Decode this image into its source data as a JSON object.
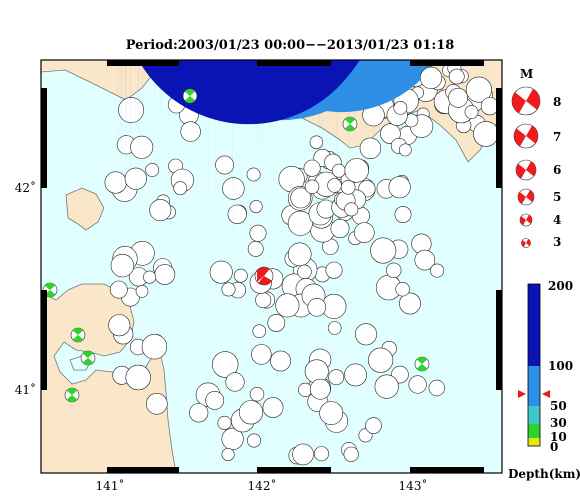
{
  "title": "Period:2003/01/23 00:00−−2013/01/23 01:18",
  "axes": {
    "x_ticks": [
      "141˚",
      "142˚",
      "143˚"
    ],
    "y_ticks": [
      "42˚",
      "41˚"
    ]
  },
  "magnitude_legend": {
    "label": "M",
    "values": [
      "8",
      "7",
      "6",
      "5",
      "4",
      "3"
    ],
    "color": "#ee1c1c"
  },
  "depth_scale": {
    "label": "Depth(km)",
    "ticks": [
      "200",
      "100",
      "50",
      "30",
      "10",
      "0"
    ],
    "colors": {
      "deep": "#0a14b4",
      "mid": "#2d8fe6",
      "shallow": "#3cc8c8",
      "very_shallow": "#2fd22f",
      "surface": "#e6e614"
    },
    "marker": {
      "depth_km": 65,
      "color": "#e81c1c"
    }
  },
  "colors": {
    "sea": "#e2ffff",
    "land": "#fae6c8",
    "frame": "#000000"
  },
  "map_data": {
    "event_count": 205,
    "highlighted_event": {
      "lon": 142.05,
      "lat": 41.6,
      "color": "#e81c1c"
    }
  }
}
